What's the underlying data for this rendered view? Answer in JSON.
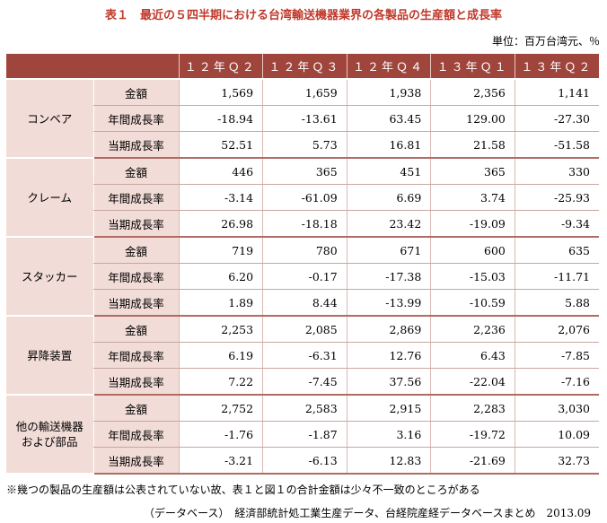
{
  "title": "表１　最近の５四半期における台湾輸送機器業界の各製品の生産額と成長率",
  "unit": "単位：百万台湾元、％",
  "table": {
    "headers": [
      "１２年Ｑ２",
      "１２年Ｑ３",
      "１２年Ｑ４",
      "１３年Ｑ１",
      "１３年Ｑ２"
    ],
    "metrics": [
      "金額",
      "年間成長率",
      "当期成長率"
    ],
    "groups": [
      {
        "name": "コンベア",
        "rows": [
          [
            "1,569",
            "1,659",
            "1,938",
            "2,356",
            "1,141"
          ],
          [
            "-18.94",
            "-13.61",
            "63.45",
            "129.00",
            "-27.30"
          ],
          [
            "52.51",
            "5.73",
            "16.81",
            "21.58",
            "-51.58"
          ]
        ]
      },
      {
        "name": "クレーム",
        "rows": [
          [
            "446",
            "365",
            "451",
            "365",
            "330"
          ],
          [
            "-3.14",
            "-61.09",
            "6.69",
            "3.74",
            "-25.93"
          ],
          [
            "26.98",
            "-18.18",
            "23.42",
            "-19.09",
            "-9.34"
          ]
        ]
      },
      {
        "name": "スタッカー",
        "rows": [
          [
            "719",
            "780",
            "671",
            "600",
            "635"
          ],
          [
            "6.20",
            "-0.17",
            "-17.38",
            "-15.03",
            "-11.71"
          ],
          [
            "1.89",
            "8.44",
            "-13.99",
            "-10.59",
            "5.88"
          ]
        ]
      },
      {
        "name": "昇降装置",
        "rows": [
          [
            "2,253",
            "2,085",
            "2,869",
            "2,236",
            "2,076"
          ],
          [
            "6.19",
            "-6.31",
            "12.76",
            "6.43",
            "-7.85"
          ],
          [
            "7.22",
            "-7.45",
            "37.56",
            "-22.04",
            "-7.16"
          ]
        ]
      },
      {
        "name": "他の輸送機器\nおよび部品",
        "rows": [
          [
            "2,752",
            "2,583",
            "2,915",
            "2,283",
            "3,030"
          ],
          [
            "-1.76",
            "-1.87",
            "3.16",
            "-19.72",
            "10.09"
          ],
          [
            "-3.21",
            "-6.13",
            "12.83",
            "-21.69",
            "32.73"
          ]
        ]
      }
    ]
  },
  "note": "※幾つの製品の生産額は公表されていない故、表１と図１の合計金額は少々不一致のところがある",
  "source": "（データベース）　経済部統計処工業生産データ、台経院産経データベースまとめ　2013.09",
  "colors": {
    "header_bg": "#a0453c",
    "label_bg": "#f2dcd7",
    "title": "#c0392b"
  }
}
